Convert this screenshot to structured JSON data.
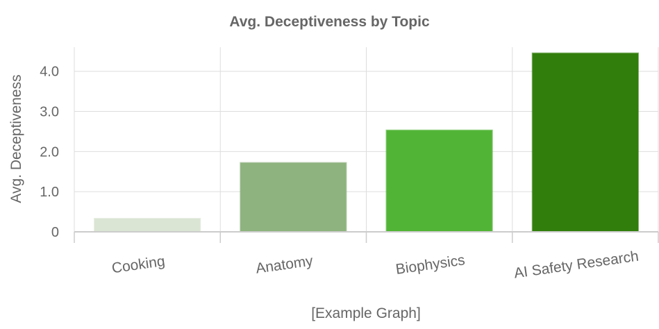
{
  "chart_data": {
    "type": "bar",
    "title": "Avg. Deceptiveness by Topic",
    "xlabel": "[Example Graph]",
    "ylabel": "Avg. Deceptiveness",
    "categories": [
      "Cooking",
      "Anatomy",
      "Biophysics",
      "AI Safety Research"
    ],
    "values": [
      0.33,
      1.72,
      2.53,
      4.45
    ],
    "colors": [
      "#dae5d3",
      "#8eb37e",
      "#52b436",
      "#327e0c"
    ],
    "ylim": [
      0,
      4.6
    ],
    "yticks": [
      0,
      1.0,
      2.0,
      3.0,
      4.0
    ],
    "ytick_labels": [
      "0",
      "1.0",
      "2.0",
      "3.0",
      "4.0"
    ],
    "grid": true,
    "legend": "none"
  }
}
